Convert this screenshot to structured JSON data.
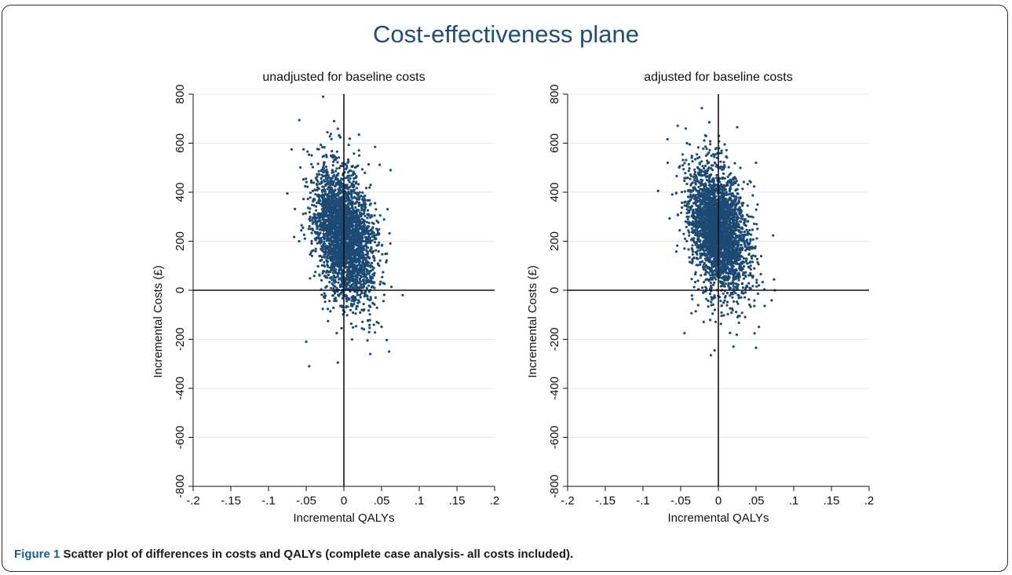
{
  "title": "Cost-effectiveness plane",
  "caption": {
    "label": "Figure 1",
    "text": "Scatter plot of differences in costs and QALYs (complete case analysis- all costs included)."
  },
  "colors": {
    "points": "#1c4a74",
    "title": "#1f4e79",
    "grid": "#e4e8ec",
    "axis": "#111111"
  },
  "chart_data": [
    {
      "type": "scatter",
      "title": "unadjusted for baseline costs",
      "xlabel": "Incremental QALYs",
      "ylabel": "Incremental Costs (£)",
      "xlim": [
        -0.2,
        0.2
      ],
      "ylim": [
        -800,
        800
      ],
      "xticks": [
        -0.2,
        -0.15,
        -0.1,
        -0.05,
        0,
        0.05,
        0.1,
        0.15,
        0.2
      ],
      "xtick_labels": [
        "-.2",
        "-.15",
        "-.1",
        "-.05",
        "0",
        ".05",
        ".1",
        ".15",
        ".2"
      ],
      "yticks": [
        -800,
        -600,
        -400,
        -200,
        0,
        200,
        400,
        600,
        800
      ],
      "ytick_labels": [
        "-800",
        "-600",
        "-400",
        "-200",
        "0",
        "200",
        "400",
        "600",
        "800"
      ],
      "grid": true,
      "cloud": {
        "x_mean": 0.0,
        "x_sd": 0.02,
        "y_mean": 230,
        "y_sd": 130,
        "n": 3000,
        "seed": 11
      },
      "points": [
        {
          "x": -0.046,
          "y": -310
        },
        {
          "x": -0.008,
          "y": -295
        },
        {
          "x": -0.013,
          "y": 690
        },
        {
          "x": 0.02,
          "y": 635
        },
        {
          "x": -0.075,
          "y": 395
        },
        {
          "x": 0.062,
          "y": 490
        },
        {
          "x": 0.078,
          "y": -20
        },
        {
          "x": 0.06,
          "y": -250
        },
        {
          "x": -0.05,
          "y": -210
        },
        {
          "x": 0.035,
          "y": -260
        }
      ]
    },
    {
      "type": "scatter",
      "title": "adjusted for baseline costs",
      "xlabel": "Incremental QALYs",
      "ylabel": "Incremental Costs (£)",
      "xlim": [
        -0.2,
        0.2
      ],
      "ylim": [
        -800,
        800
      ],
      "xticks": [
        -0.2,
        -0.15,
        -0.1,
        -0.05,
        0,
        0.05,
        0.1,
        0.15,
        0.2
      ],
      "xtick_labels": [
        "-.2",
        "-.15",
        "-.1",
        "-.05",
        "0",
        ".05",
        ".1",
        ".15",
        ".2"
      ],
      "yticks": [
        -800,
        -600,
        -400,
        -200,
        0,
        200,
        400,
        600,
        800
      ],
      "ytick_labels": [
        "-800",
        "-600",
        "-400",
        "-200",
        "0",
        "200",
        "400",
        "600",
        "800"
      ],
      "grid": true,
      "cloud": {
        "x_mean": 0.0,
        "x_sd": 0.02,
        "y_mean": 245,
        "y_sd": 125,
        "n": 3000,
        "seed": 29
      },
      "points": [
        {
          "x": -0.01,
          "y": -265
        },
        {
          "x": -0.005,
          "y": -245
        },
        {
          "x": -0.012,
          "y": 685
        },
        {
          "x": 0.025,
          "y": 665
        },
        {
          "x": -0.08,
          "y": 405
        },
        {
          "x": 0.05,
          "y": 520
        },
        {
          "x": 0.075,
          "y": 0
        },
        {
          "x": 0.05,
          "y": -235
        },
        {
          "x": -0.045,
          "y": -175
        },
        {
          "x": 0.02,
          "y": -230
        }
      ]
    }
  ]
}
